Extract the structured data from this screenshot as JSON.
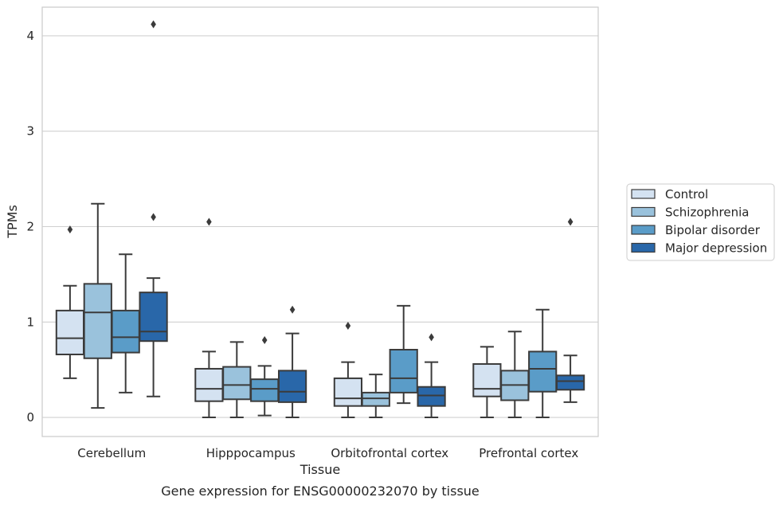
{
  "chart_data": {
    "type": "boxplot",
    "title": "",
    "caption": "Gene expression for ENSG00000232070 by tissue",
    "xlabel": "Tissue",
    "ylabel": "TPMs",
    "ylim": [
      -0.2,
      4.3
    ],
    "yticks": [
      0,
      1,
      2,
      3,
      4
    ],
    "grid": true,
    "legend_position": "right",
    "categories": [
      "Cerebellum",
      "Hipppocampus",
      "Orbitofrontal cortex",
      "Prefrontal cortex"
    ],
    "series": [
      {
        "name": "Control",
        "color": "#d4e2f1",
        "boxes": [
          {
            "whislo": 0.41,
            "q1": 0.66,
            "med": 0.83,
            "q3": 1.12,
            "whishi": 1.38,
            "fliers": [
              1.97
            ]
          },
          {
            "whislo": 0.0,
            "q1": 0.17,
            "med": 0.3,
            "q3": 0.51,
            "whishi": 0.69,
            "fliers": [
              2.05
            ]
          },
          {
            "whislo": 0.0,
            "q1": 0.12,
            "med": 0.2,
            "q3": 0.41,
            "whishi": 0.58,
            "fliers": [
              0.96
            ]
          },
          {
            "whislo": 0.0,
            "q1": 0.22,
            "med": 0.3,
            "q3": 0.56,
            "whishi": 0.74,
            "fliers": []
          }
        ]
      },
      {
        "name": "Schizophrenia",
        "color": "#9ac2dc",
        "boxes": [
          {
            "whislo": 0.1,
            "q1": 0.62,
            "med": 1.1,
            "q3": 1.4,
            "whishi": 2.24,
            "fliers": []
          },
          {
            "whislo": 0.0,
            "q1": 0.19,
            "med": 0.34,
            "q3": 0.53,
            "whishi": 0.79,
            "fliers": []
          },
          {
            "whislo": 0.0,
            "q1": 0.12,
            "med": 0.2,
            "q3": 0.26,
            "whishi": 0.45,
            "fliers": []
          },
          {
            "whislo": 0.0,
            "q1": 0.18,
            "med": 0.34,
            "q3": 0.49,
            "whishi": 0.9,
            "fliers": []
          }
        ]
      },
      {
        "name": "Bipolar disorder",
        "color": "#5a9cc8",
        "boxes": [
          {
            "whislo": 0.26,
            "q1": 0.68,
            "med": 0.84,
            "q3": 1.12,
            "whishi": 1.71,
            "fliers": []
          },
          {
            "whislo": 0.02,
            "q1": 0.17,
            "med": 0.3,
            "q3": 0.4,
            "whishi": 0.54,
            "fliers": [
              0.81
            ]
          },
          {
            "whislo": 0.15,
            "q1": 0.26,
            "med": 0.41,
            "q3": 0.71,
            "whishi": 1.17,
            "fliers": []
          },
          {
            "whislo": 0.0,
            "q1": 0.27,
            "med": 0.51,
            "q3": 0.69,
            "whishi": 1.13,
            "fliers": []
          }
        ]
      },
      {
        "name": "Major depression",
        "color": "#2967a9",
        "boxes": [
          {
            "whislo": 0.22,
            "q1": 0.8,
            "med": 0.9,
            "q3": 1.31,
            "whishi": 1.46,
            "fliers": [
              2.1,
              4.12
            ]
          },
          {
            "whislo": 0.0,
            "q1": 0.16,
            "med": 0.27,
            "q3": 0.49,
            "whishi": 0.88,
            "fliers": [
              1.13
            ]
          },
          {
            "whislo": 0.0,
            "q1": 0.12,
            "med": 0.23,
            "q3": 0.32,
            "whishi": 0.58,
            "fliers": [
              0.84
            ]
          },
          {
            "whislo": 0.16,
            "q1": 0.29,
            "med": 0.38,
            "q3": 0.44,
            "whishi": 0.65,
            "fliers": [
              2.05
            ]
          }
        ]
      }
    ]
  }
}
